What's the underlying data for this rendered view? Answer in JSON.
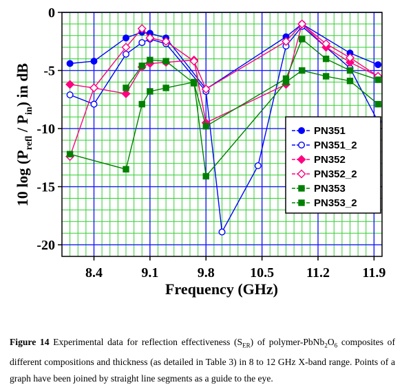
{
  "chart_data": {
    "type": "line",
    "title": "",
    "xlabel": "Frequency (GHz)",
    "ylabel": "10 log (Prefl / Pin) in dB",
    "ylabel_parts": {
      "prefix": "10 log (P",
      "sub1": "refl",
      "mid": " / P",
      "sub2": "in",
      "suffix": ") in dB"
    },
    "xlim": [
      8.0,
      12.0
    ],
    "ylim": [
      -21,
      0
    ],
    "xticks": [
      8.4,
      9.1,
      9.8,
      10.5,
      11.2,
      11.9
    ],
    "xtick_labels": [
      "8.4",
      "9.1",
      "9.8",
      "10.5",
      "11.2",
      "11.9"
    ],
    "yticks": [
      0,
      -5,
      -10,
      -15,
      -20
    ],
    "ytick_labels": [
      "0",
      "-5",
      "-10",
      "-15",
      "-20"
    ],
    "grid": true,
    "legend_position": "right",
    "series": [
      {
        "name": "PN351",
        "color": "#0000ff",
        "marker": "circle",
        "filled": true,
        "x": [
          8.1,
          8.4,
          8.8,
          9.0,
          9.1,
          9.3,
          9.8,
          10.8,
          11.0,
          11.6,
          11.95
        ],
        "y": [
          -4.4,
          -4.2,
          -2.2,
          -1.7,
          -1.8,
          -2.2,
          -6.6,
          -2.1,
          -1.0,
          -3.5,
          -4.5
        ]
      },
      {
        "name": "PN351_2",
        "color": "#0000ff",
        "marker": "circle",
        "filled": false,
        "x": [
          8.1,
          8.4,
          8.8,
          9.0,
          9.1,
          9.3,
          9.8,
          10.0,
          10.45,
          10.8,
          11.0,
          11.6,
          11.95
        ],
        "y": [
          -7.1,
          -7.9,
          -3.6,
          -2.6,
          -2.3,
          -2.7,
          -6.8,
          -18.9,
          -13.2,
          -2.9,
          -1.2,
          -4.8,
          -9.4
        ]
      },
      {
        "name": "PN352",
        "color": "#ff0080",
        "marker": "diamond",
        "filled": true,
        "x": [
          8.1,
          8.4,
          8.8,
          9.0,
          9.1,
          9.3,
          9.65,
          9.8,
          10.8,
          11.0,
          11.3,
          11.6,
          11.95
        ],
        "y": [
          -6.2,
          -6.5,
          -7.0,
          -4.7,
          -4.4,
          -4.3,
          -4.1,
          -9.5,
          -6.2,
          -1.0,
          -3.0,
          -4.3,
          -5.5
        ]
      },
      {
        "name": "PN352_2",
        "color": "#ff0080",
        "marker": "diamond",
        "filled": false,
        "x": [
          8.1,
          8.4,
          8.8,
          9.0,
          9.1,
          9.3,
          9.65,
          9.8,
          10.8,
          11.0,
          11.3,
          11.6,
          11.95
        ],
        "y": [
          -12.4,
          -6.5,
          -3.0,
          -1.4,
          -2.2,
          -2.5,
          -4.2,
          -6.6,
          -2.5,
          -1.0,
          -2.7,
          -3.9,
          -5.5
        ]
      },
      {
        "name": "PN353",
        "color": "#008000",
        "marker": "square",
        "filled": true,
        "x": [
          8.1,
          8.8,
          9.0,
          9.1,
          9.3,
          9.65,
          9.8,
          10.8,
          11.0,
          11.3,
          11.6,
          11.95
        ],
        "y": [
          -12.2,
          -13.5,
          -7.9,
          -6.8,
          -6.5,
          -6.0,
          -14.1,
          -6.0,
          -5.0,
          -5.5,
          -5.9,
          -7.9
        ]
      },
      {
        "name": "PN353_2",
        "color": "#008000",
        "marker": "square",
        "filled": true,
        "x": [
          8.8,
          9.0,
          9.1,
          9.3,
          9.65,
          9.8,
          10.8,
          11.0,
          11.3,
          11.6,
          11.95
        ],
        "y": [
          -6.5,
          -4.6,
          -4.1,
          -4.2,
          -6.1,
          -9.8,
          -5.7,
          -2.3,
          -4.0,
          -5.0,
          -5.8
        ]
      }
    ]
  },
  "caption": {
    "label": "Figure 14",
    "text_1": " Experimental data for reflection effectiveness (S",
    "sub_1": "ER",
    "text_2": ") of polymer-PbNb",
    "sub_2": "2",
    "text_3": "O",
    "sub_3": "6",
    "text_4": " composites of different compositions and thickness (as detailed in Table 3) in 8 to 12 GHz X-band range. Points of a graph have been joined by straight line segments as a guide to the eye."
  }
}
